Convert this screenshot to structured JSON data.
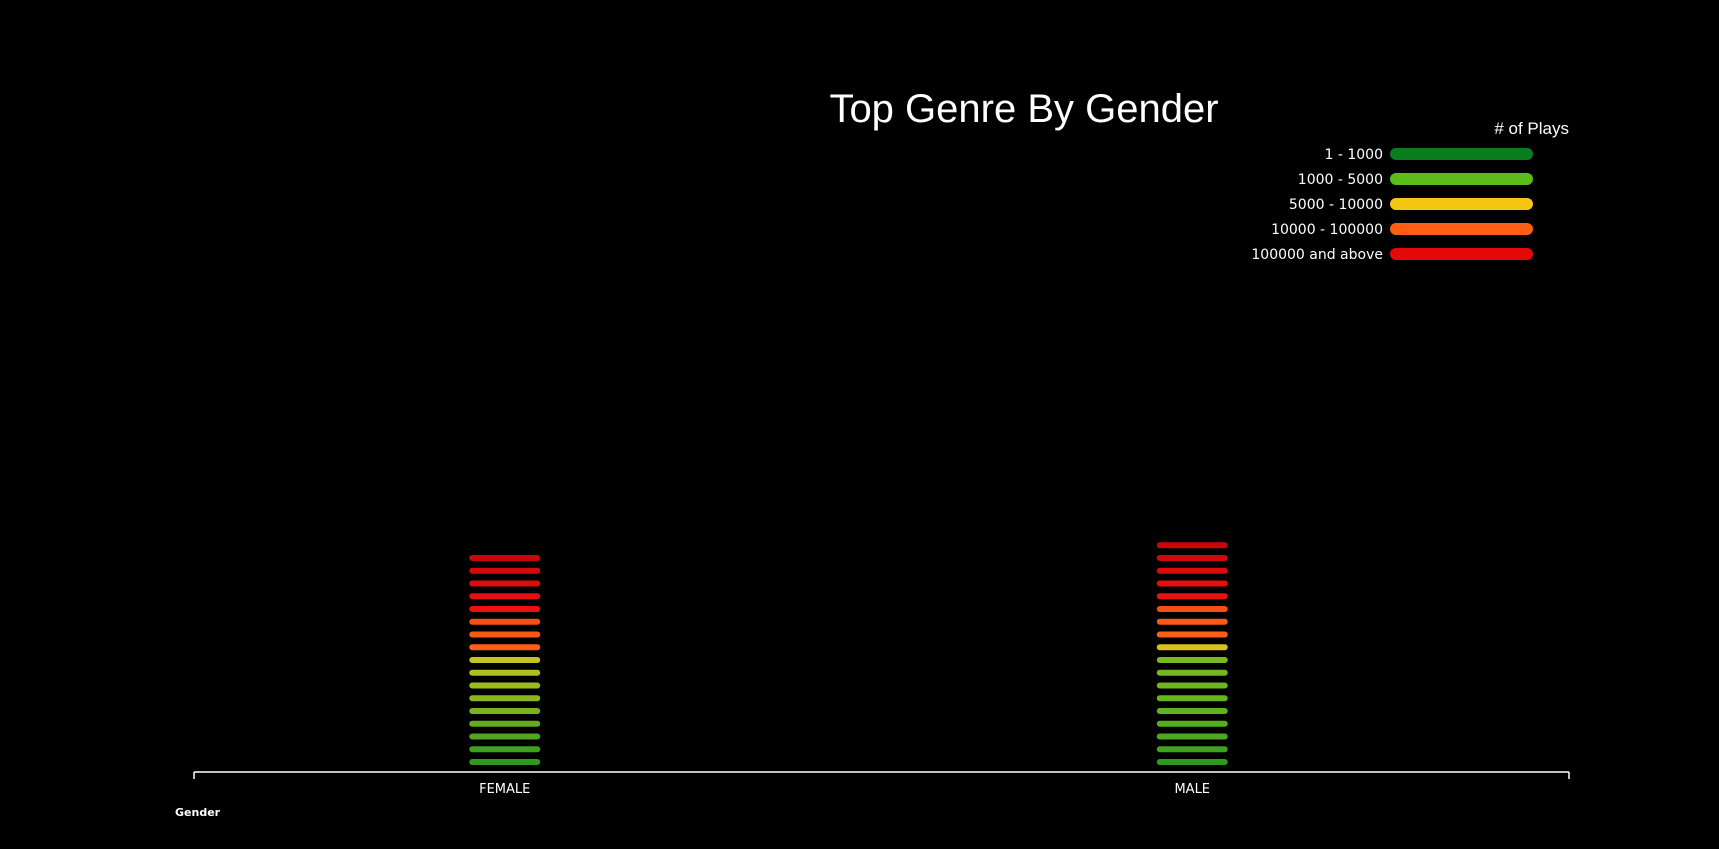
{
  "chart_data": {
    "type": "bar",
    "title": "Top Genre By Gender",
    "xlabel": "Gender",
    "ylabel": "",
    "categories": [
      "FEMALE",
      "MALE"
    ],
    "legend": {
      "title": "# of Plays",
      "placement": "top-right",
      "entries": [
        {
          "label": "1 - 1000",
          "color": "#0a7d1e"
        },
        {
          "label": "1000 - 5000",
          "color": "#5cbc1a"
        },
        {
          "label": "5000 - 10000",
          "color": "#f6c614"
        },
        {
          "label": "10000 - 100000",
          "color": "#ff5e14"
        },
        {
          "label": "100000 and above",
          "color": "#e50808"
        }
      ]
    },
    "stacks": [
      {
        "category": "FEMALE",
        "segment_colors": [
          "#2f9a1e",
          "#3f9f1e",
          "#52a51f",
          "#65ab1f",
          "#78b01f",
          "#8ab520",
          "#9cba20",
          "#aebf21",
          "#c3c322",
          "#ff5e14",
          "#fb5814",
          "#f55014",
          "#ee1010",
          "#e60e0e",
          "#dd0c0c",
          "#d40a0a",
          "#c80808"
        ]
      },
      {
        "category": "MALE",
        "segment_colors": [
          "#2f9a1e",
          "#3fa21e",
          "#4ea81f",
          "#58ad1f",
          "#5fb21f",
          "#66b41f",
          "#6db620",
          "#72b820",
          "#78ba20",
          "#d9c01e",
          "#ff5e14",
          "#fb5814",
          "#f55014",
          "#ee1010",
          "#e60e0e",
          "#dd0c0c",
          "#cf0a0a",
          "#c80808"
        ]
      }
    ],
    "grid": false
  }
}
